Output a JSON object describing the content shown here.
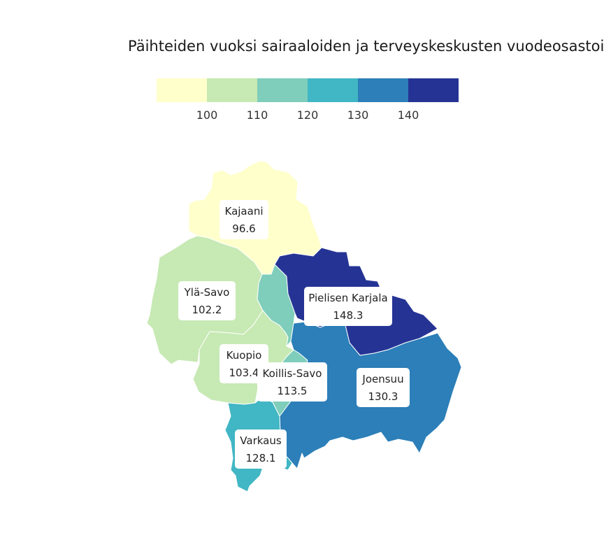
{
  "title": "Päihteiden vuoksi sairaaloiden ja terveyskeskusten vuodeosastoil",
  "legend": {
    "colors": [
      "#ffffcc",
      "#c7e9b4",
      "#7fcdbb",
      "#41b6c4",
      "#2c7fb8",
      "#253494"
    ],
    "ticks": [
      "100",
      "110",
      "120",
      "130",
      "140"
    ]
  },
  "regions": [
    {
      "name": "Kajaani",
      "value": "96.6",
      "color": "#ffffcc"
    },
    {
      "name": "Ylä-Savo",
      "value": "102.2",
      "color": "#c7e9b4"
    },
    {
      "name": "Kuopio",
      "value": "103.4",
      "color": "#c7e9b4"
    },
    {
      "name": "Koillis-Savo",
      "value": "113.5",
      "color": "#7fcdbb"
    },
    {
      "name": "Pielisen Karjala",
      "value": "148.3",
      "color": "#253494"
    },
    {
      "name": "Joensuu",
      "value": "130.3",
      "color": "#2c7fb8"
    },
    {
      "name": "Varkaus",
      "value": "128.1",
      "color": "#41b6c4"
    }
  ]
}
